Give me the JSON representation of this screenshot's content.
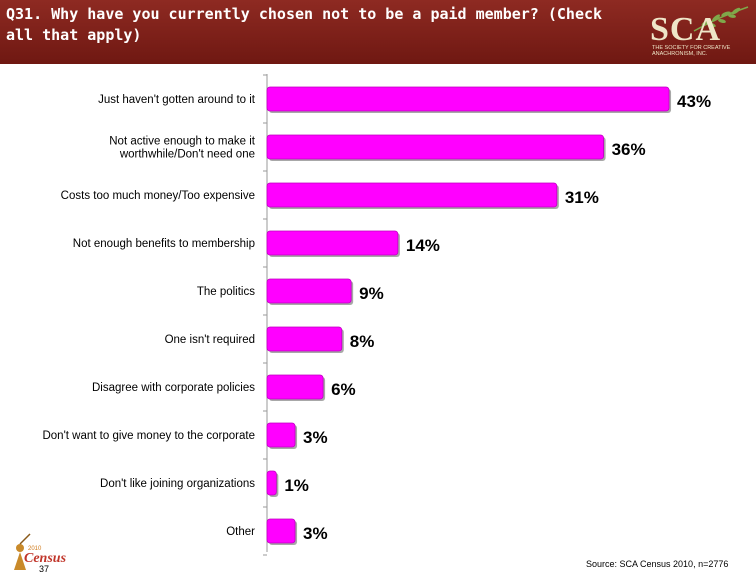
{
  "header": {
    "title": "Q31. Why have you currently chosen not to be a paid member? (Check all that apply)"
  },
  "logo": {
    "letters": "SCA",
    "subtitle_line1": "THE SOCIETY FOR CREATIVE",
    "subtitle_line2": "ANACHRONISM, INC."
  },
  "census_logo": {
    "small_top": "2010",
    "word": "Census"
  },
  "colors": {
    "bar": "#ff00ff",
    "header": "#7a1f18"
  },
  "chart_data": {
    "type": "bar",
    "orientation": "horizontal",
    "categories": [
      [
        "Just haven't gotten around to it"
      ],
      [
        "Not active enough to make it",
        "worthwhile/Don't need one"
      ],
      [
        "Costs too much money/Too expensive"
      ],
      [
        "Not enough benefits to membership"
      ],
      [
        "The politics"
      ],
      [
        "One isn't required"
      ],
      [
        "Disagree with corporate policies"
      ],
      [
        "Don't want to give money to the corporate"
      ],
      [
        "Don't like joining organizations"
      ],
      [
        "Other"
      ]
    ],
    "values": [
      43,
      36,
      31,
      14,
      9,
      8,
      6,
      3,
      1,
      3
    ],
    "data_labels": [
      "43%",
      "36%",
      "31%",
      "14%",
      "9%",
      "8%",
      "6%",
      "3%",
      "1%",
      "3%"
    ],
    "xlim": [
      0,
      45
    ]
  },
  "footer": {
    "source": "Source: SCA Census 2010, n=2776",
    "page_number": "37"
  }
}
